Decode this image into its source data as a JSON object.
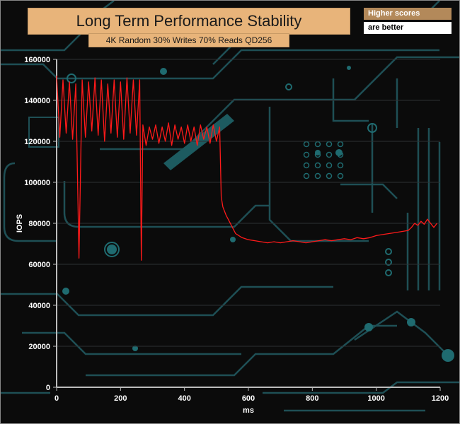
{
  "chart_data": {
    "type": "line",
    "title": "Long Term Performance Stability",
    "subtitle": "4K Random 30% Writes 70% Reads QD256",
    "xlabel": "ms",
    "ylabel": "IOPS",
    "xlim": [
      0,
      1200
    ],
    "ylim": [
      0,
      160000
    ],
    "x_ticks": [
      "0",
      "200",
      "400",
      "600",
      "800",
      "1000",
      "1200"
    ],
    "y_ticks": [
      "0",
      "20000",
      "40000",
      "60000",
      "80000",
      "100000",
      "120000",
      "140000",
      "160000"
    ],
    "legend": [
      "Higher scores",
      "are better"
    ],
    "series": [
      {
        "color": "#ff1a1a",
        "x": [
          0,
          10,
          20,
          30,
          40,
          50,
          60,
          70,
          80,
          90,
          100,
          110,
          120,
          130,
          140,
          150,
          160,
          170,
          180,
          190,
          200,
          210,
          220,
          230,
          240,
          250,
          260,
          265,
          270,
          280,
          290,
          300,
          310,
          320,
          330,
          340,
          350,
          360,
          370,
          380,
          390,
          400,
          410,
          420,
          430,
          440,
          450,
          460,
          470,
          480,
          490,
          500,
          510,
          515,
          520,
          530,
          540,
          550,
          560,
          580,
          600,
          620,
          640,
          660,
          680,
          700,
          720,
          740,
          760,
          780,
          800,
          820,
          840,
          860,
          880,
          900,
          920,
          940,
          960,
          980,
          1000,
          1020,
          1040,
          1060,
          1080,
          1100,
          1110,
          1120,
          1130,
          1140,
          1150,
          1160,
          1170,
          1180,
          1190
        ],
        "y": [
          152000,
          122000,
          150000,
          124000,
          149000,
          121000,
          148000,
          63000,
          150000,
          122000,
          149000,
          125000,
          151000,
          123000,
          150000,
          120000,
          148000,
          124000,
          150000,
          122000,
          149000,
          121000,
          151000,
          124000,
          150000,
          123000,
          150000,
          62000,
          128000,
          118000,
          127000,
          121000,
          128000,
          119000,
          127000,
          120000,
          129000,
          118000,
          128000,
          121000,
          127000,
          119000,
          128000,
          120000,
          127000,
          118000,
          128000,
          121000,
          127000,
          119000,
          128000,
          120000,
          127000,
          93000,
          88000,
          84000,
          81000,
          78000,
          75000,
          73000,
          72000,
          71500,
          71000,
          70500,
          71000,
          70500,
          71000,
          71500,
          71000,
          70500,
          71000,
          71500,
          72000,
          71500,
          72000,
          72500,
          72000,
          73000,
          72500,
          73000,
          74000,
          74500,
          75000,
          75500,
          76000,
          76500,
          78000,
          80000,
          79000,
          81000,
          79500,
          82000,
          80000,
          78000,
          80000
        ]
      }
    ]
  }
}
